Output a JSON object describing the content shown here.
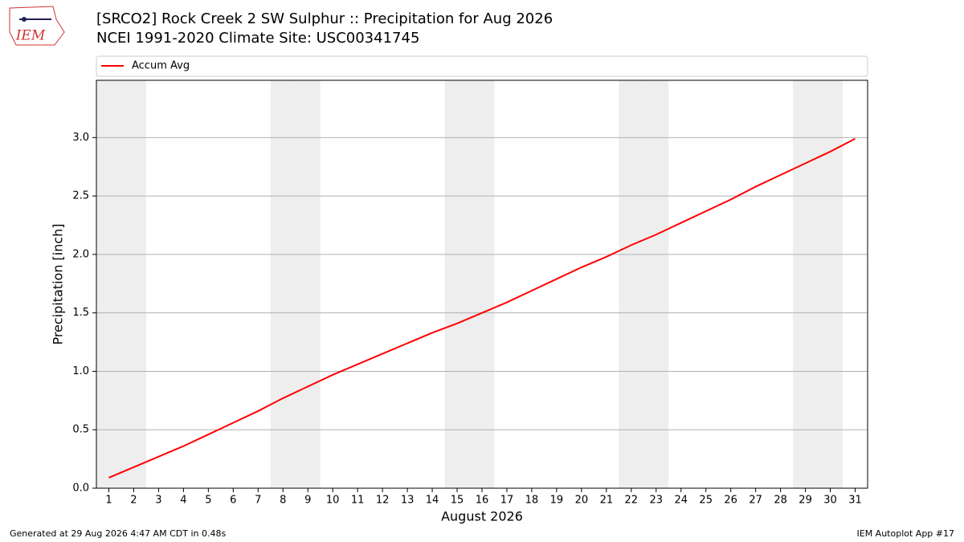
{
  "logo_text": "IEM",
  "footer_left": "Generated at 29 Aug 2026 4:47 AM CDT in 0.48s",
  "footer_right": "IEM Autoplot App #17",
  "chart_data": {
    "type": "line",
    "title": "[SRCO2] Rock Creek 2 SW Sulphur :: Precipitation for Aug 2026",
    "subtitle": "NCEI 1991-2020 Climate Site: USC00341745",
    "x_label": "August 2026",
    "y_label": "Precipitation [inch]",
    "x": [
      1,
      2,
      3,
      4,
      5,
      6,
      7,
      8,
      9,
      10,
      11,
      12,
      13,
      14,
      15,
      16,
      17,
      18,
      19,
      20,
      21,
      22,
      23,
      24,
      25,
      26,
      27,
      28,
      29,
      30,
      31
    ],
    "series": [
      {
        "name": "Accum Avg",
        "color": "#ff0000",
        "values": [
          0.09,
          0.18,
          0.27,
          0.36,
          0.46,
          0.56,
          0.66,
          0.77,
          0.87,
          0.97,
          1.06,
          1.15,
          1.24,
          1.33,
          1.41,
          1.5,
          1.59,
          1.69,
          1.79,
          1.89,
          1.98,
          2.08,
          2.17,
          2.27,
          2.37,
          2.47,
          2.58,
          2.68,
          2.78,
          2.88,
          2.99
        ]
      }
    ],
    "shaded_days": [
      1,
      2,
      8,
      9,
      15,
      16,
      22,
      23,
      29,
      30
    ],
    "shade_color": "#eeeeee",
    "xlim": [
      0.5,
      31.5
    ],
    "ylim": [
      0,
      3.49
    ],
    "xticks": [
      1,
      2,
      3,
      4,
      5,
      6,
      7,
      8,
      9,
      10,
      11,
      12,
      13,
      14,
      15,
      16,
      17,
      18,
      19,
      20,
      21,
      22,
      23,
      24,
      25,
      26,
      27,
      28,
      29,
      30,
      31
    ],
    "yticks": [
      {
        "value": 0,
        "label": "0.0"
      },
      0.5,
      {
        "value": 1,
        "label": "1.0"
      },
      1.5,
      {
        "value": 2,
        "label": "2.0"
      },
      2.5,
      {
        "value": 3,
        "label": "3.0"
      }
    ],
    "grid": true,
    "legend": "top"
  }
}
